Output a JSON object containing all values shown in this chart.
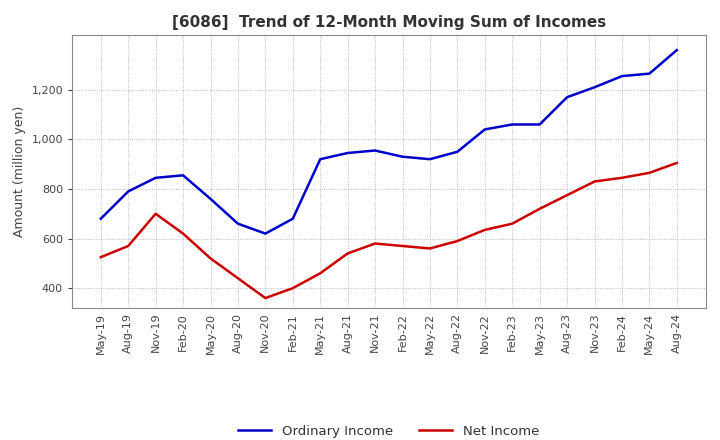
{
  "title": "[6086]  Trend of 12-Month Moving Sum of Incomes",
  "ylabel": "Amount (million yen)",
  "ylim": [
    320,
    1420
  ],
  "yticks": [
    400,
    600,
    800,
    1000,
    1200
  ],
  "background_color": "#ffffff",
  "plot_bg_color": "#ffffff",
  "grid_color": "#aaaaaa",
  "x_labels": [
    "May-19",
    "Aug-19",
    "Nov-19",
    "Feb-20",
    "May-20",
    "Aug-20",
    "Nov-20",
    "Feb-21",
    "May-21",
    "Aug-21",
    "Nov-21",
    "Feb-22",
    "May-22",
    "Aug-22",
    "Nov-22",
    "Feb-23",
    "May-23",
    "Aug-23",
    "Nov-23",
    "Feb-24",
    "May-24",
    "Aug-24"
  ],
  "ordinary_income": [
    680,
    790,
    845,
    855,
    760,
    660,
    620,
    680,
    920,
    945,
    955,
    930,
    920,
    950,
    1040,
    1060,
    1060,
    1170,
    1210,
    1255,
    1265,
    1360
  ],
  "net_income": [
    525,
    570,
    700,
    620,
    520,
    440,
    360,
    400,
    460,
    540,
    580,
    570,
    560,
    590,
    635,
    660,
    720,
    775,
    830,
    845,
    865,
    905
  ],
  "ordinary_color": "#0000cc",
  "net_color": "#cc0000",
  "line_width": 1.8,
  "legend_labels": [
    "Ordinary Income",
    "Net Income"
  ],
  "title_fontsize": 11,
  "ylabel_fontsize": 9,
  "tick_fontsize": 8
}
